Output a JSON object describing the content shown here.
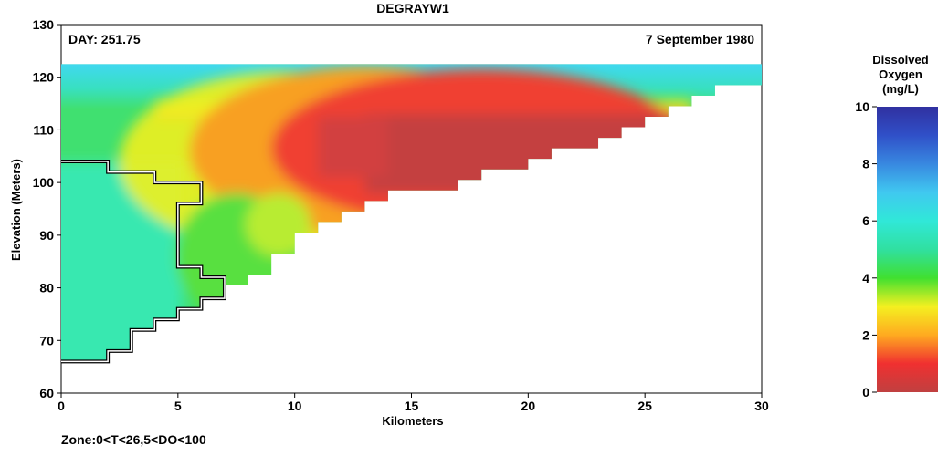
{
  "chart_data": {
    "type": "heatmap",
    "title": "DEGRAYW1",
    "day_label": "DAY: 251.75",
    "date_label": "7 September 1980",
    "xlabel": "Kilometers",
    "ylabel": "Elevation (Meters)",
    "xlim": [
      0,
      30
    ],
    "ylim": [
      60,
      130
    ],
    "x_ticks": [
      "0",
      "5",
      "10",
      "15",
      "20",
      "25",
      "30"
    ],
    "y_ticks": [
      "60",
      "70",
      "80",
      "90",
      "100",
      "110",
      "120",
      "130"
    ],
    "footer": "Zone:0<T<26,5<DO<100",
    "colorbar": {
      "title_lines": [
        "Dissolved",
        "Oxygen",
        "(mg/L)"
      ],
      "range": [
        0,
        10
      ],
      "ticks": [
        "0",
        "2",
        "4",
        "6",
        "8",
        "10"
      ],
      "colors": [
        {
          "value": 0,
          "color": "#c04040"
        },
        {
          "value": 1,
          "color": "#f03030"
        },
        {
          "value": 2,
          "color": "#ffaa20"
        },
        {
          "value": 3,
          "color": "#f4f020"
        },
        {
          "value": 4,
          "color": "#40e030"
        },
        {
          "value": 5,
          "color": "#30e0a0"
        },
        {
          "value": 6,
          "color": "#30e8d8"
        },
        {
          "value": 7,
          "color": "#40c8f0"
        },
        {
          "value": 8,
          "color": "#3888e0"
        },
        {
          "value": 9,
          "color": "#3050c8"
        },
        {
          "value": 10,
          "color": "#3030a0"
        }
      ]
    },
    "reservoir_bottom_profile": [
      {
        "x": 0,
        "y": 66
      },
      {
        "x": 2,
        "y": 66
      },
      {
        "x": 2,
        "y": 68
      },
      {
        "x": 3,
        "y": 68
      },
      {
        "x": 3,
        "y": 72
      },
      {
        "x": 4,
        "y": 72
      },
      {
        "x": 4,
        "y": 74
      },
      {
        "x": 5,
        "y": 74
      },
      {
        "x": 5,
        "y": 76
      },
      {
        "x": 6,
        "y": 76
      },
      {
        "x": 6,
        "y": 78
      },
      {
        "x": 7,
        "y": 78
      },
      {
        "x": 7,
        "y": 80.5
      },
      {
        "x": 8,
        "y": 80.5
      },
      {
        "x": 8,
        "y": 82.5
      },
      {
        "x": 9,
        "y": 82.5
      },
      {
        "x": 9,
        "y": 86.5
      },
      {
        "x": 10,
        "y": 86.5
      },
      {
        "x": 10,
        "y": 90.5
      },
      {
        "x": 11,
        "y": 90.5
      },
      {
        "x": 11,
        "y": 92.5
      },
      {
        "x": 12,
        "y": 92.5
      },
      {
        "x": 12,
        "y": 94.5
      },
      {
        "x": 13,
        "y": 94.5
      },
      {
        "x": 13,
        "y": 96.5
      },
      {
        "x": 14,
        "y": 96.5
      },
      {
        "x": 14,
        "y": 98.5
      },
      {
        "x": 17,
        "y": 98.5
      },
      {
        "x": 17,
        "y": 100.5
      },
      {
        "x": 18,
        "y": 100.5
      },
      {
        "x": 18,
        "y": 102.5
      },
      {
        "x": 20,
        "y": 102.5
      },
      {
        "x": 20,
        "y": 104.5
      },
      {
        "x": 21,
        "y": 104.5
      },
      {
        "x": 21,
        "y": 106.5
      },
      {
        "x": 23,
        "y": 106.5
      },
      {
        "x": 23,
        "y": 108.5
      },
      {
        "x": 24,
        "y": 108.5
      },
      {
        "x": 24,
        "y": 110.5
      },
      {
        "x": 25,
        "y": 110.5
      },
      {
        "x": 25,
        "y": 112.5
      },
      {
        "x": 26,
        "y": 112.5
      },
      {
        "x": 26,
        "y": 114.5
      },
      {
        "x": 27,
        "y": 114.5
      },
      {
        "x": 27,
        "y": 116.5
      },
      {
        "x": 28,
        "y": 116.5
      },
      {
        "x": 28,
        "y": 118.5
      },
      {
        "x": 30,
        "y": 118.5
      },
      {
        "x": 30,
        "y": 122.5
      }
    ],
    "water_surface_elevation": 122.5,
    "zone_outline": [
      {
        "x": 0,
        "y": 104
      },
      {
        "x": 2,
        "y": 104
      },
      {
        "x": 2,
        "y": 102
      },
      {
        "x": 4,
        "y": 102
      },
      {
        "x": 4,
        "y": 100
      },
      {
        "x": 6,
        "y": 100
      },
      {
        "x": 6,
        "y": 96
      },
      {
        "x": 5,
        "y": 96
      },
      {
        "x": 5,
        "y": 84
      },
      {
        "x": 6,
        "y": 84
      },
      {
        "x": 6,
        "y": 82
      },
      {
        "x": 7,
        "y": 82
      },
      {
        "x": 7,
        "y": 78
      },
      {
        "x": 6,
        "y": 78
      },
      {
        "x": 6,
        "y": 76
      },
      {
        "x": 5,
        "y": 76
      },
      {
        "x": 5,
        "y": 74
      },
      {
        "x": 4,
        "y": 74
      },
      {
        "x": 4,
        "y": 72
      },
      {
        "x": 3,
        "y": 72
      },
      {
        "x": 3,
        "y": 68
      },
      {
        "x": 2,
        "y": 68
      },
      {
        "x": 2,
        "y": 66
      },
      {
        "x": 0,
        "y": 66
      }
    ],
    "do_field_description": {
      "surface_layer": {
        "elevation_range": [
          116,
          122.5
        ],
        "do_mg_L": 6.5
      },
      "metalimnion_band": {
        "elevation_range": [
          113,
          116
        ],
        "do_mg_L": 3.5
      },
      "anoxic_core": {
        "x_range": [
          9,
          26
        ],
        "elevation_range": [
          98,
          113
        ],
        "do_mg_L": 0.2
      },
      "upstream_hypolimnion": {
        "x_range": [
          0,
          5
        ],
        "elevation_range": [
          66,
          104
        ],
        "do_mg_L": 5.7
      }
    }
  }
}
